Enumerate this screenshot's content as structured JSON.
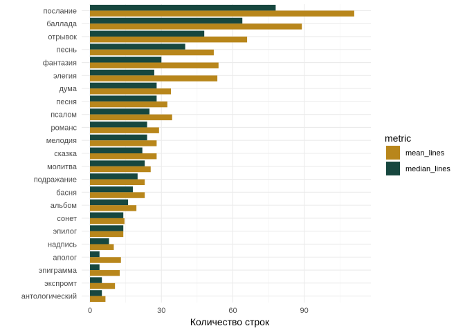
{
  "chart_data": {
    "type": "bar",
    "orientation": "horizontal",
    "categories": [
      "послание",
      "баллада",
      "отрывок",
      "песнь",
      "фантазия",
      "элегия",
      "дума",
      "песня",
      "псалом",
      "романс",
      "мелодия",
      "сказка",
      "молитва",
      "подражание",
      "басня",
      "альбом",
      "сонет",
      "эпилог",
      "надпись",
      "аполог",
      "эпиграмма",
      "экспромт",
      "антологический"
    ],
    "series": [
      {
        "name": "median_lines",
        "color": "#17473f",
        "values": [
          78,
          64,
          48,
          40,
          30,
          27,
          28,
          28,
          25,
          24,
          24,
          22,
          23,
          20,
          18,
          16,
          14,
          14,
          8,
          4,
          4,
          5,
          5
        ]
      },
      {
        "name": "mean_lines",
        "color": "#b8861b",
        "values": [
          111,
          89,
          66,
          52,
          54,
          53.5,
          34,
          32.5,
          34.5,
          29,
          28,
          28,
          25.5,
          23,
          23,
          19.5,
          14.5,
          14,
          10,
          13,
          12.5,
          10.5,
          6.5
        ]
      }
    ],
    "xlabel": "Количество строк",
    "ylabel": "",
    "xlim": [
      -3.5,
      118
    ],
    "xticks": [
      0,
      30,
      60,
      90
    ],
    "grid": true,
    "legend": {
      "title": "metric",
      "position": "right",
      "entries": [
        "mean_lines",
        "median_lines"
      ]
    }
  }
}
